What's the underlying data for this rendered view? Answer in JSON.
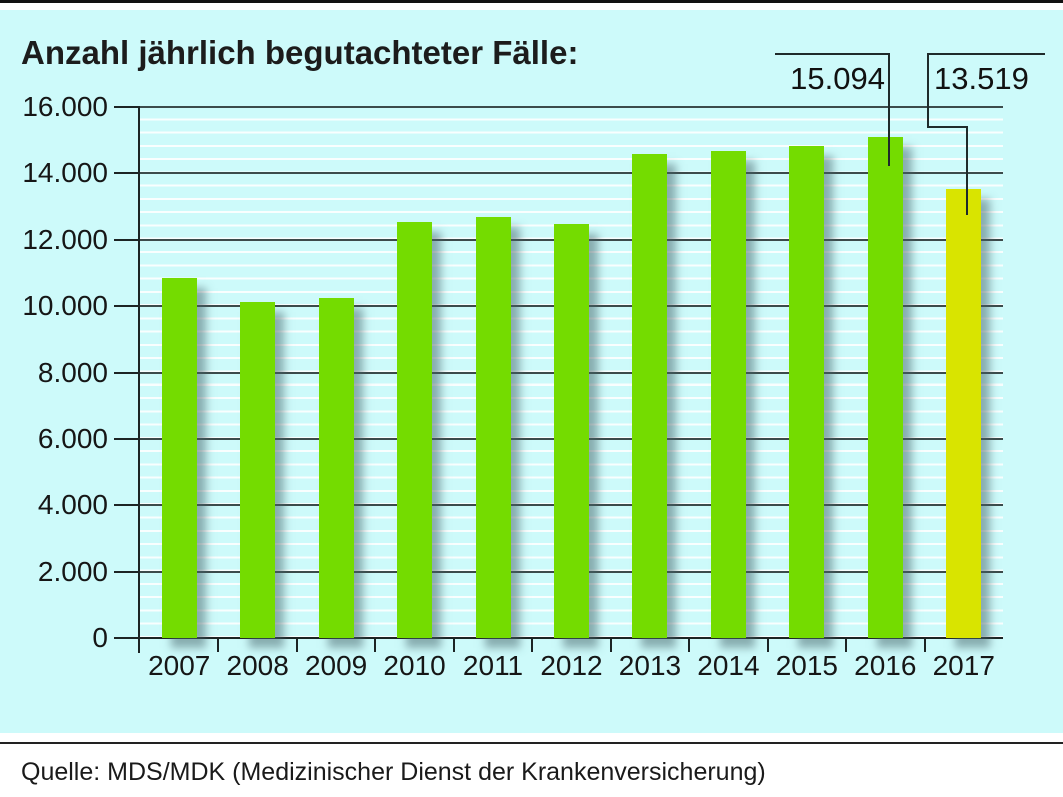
{
  "title": "Anzahl jährlich begutachteter Fälle:",
  "source": "Quelle: MDS/MDK (Medizinischer Dienst der Krankenversicherung)",
  "colors": {
    "panel_background": "#cdfafa",
    "bar_green": "#74dc00",
    "bar_highlight_yellow": "#d9e400",
    "major_gridline": "#3c4b4b",
    "axis": "#1c2424",
    "minor_gridline": "#ffffff",
    "text": "#1a1a1a"
  },
  "chart_data": {
    "type": "bar",
    "title": "Anzahl jährlich begutachteter Fälle:",
    "categories": [
      "2007",
      "2008",
      "2009",
      "2010",
      "2011",
      "2012",
      "2013",
      "2014",
      "2015",
      "2016",
      "2017"
    ],
    "values": [
      10850,
      10130,
      10230,
      12540,
      12686,
      12483,
      14585,
      14663,
      14828,
      15094,
      13519
    ],
    "ylim": [
      0,
      16000
    ],
    "ytick_labels": [
      "0",
      "2.000",
      "4.000",
      "6.000",
      "8.000",
      "10.000",
      "12.000",
      "14.000",
      "16.000"
    ],
    "xlabel": "",
    "ylabel": "",
    "grid": "major horizontal dark every 2000, minor white every 400",
    "legend": "none",
    "bar_color": "#74dc00",
    "highlight_bar_color": "#d9e400",
    "highlight_index": 10,
    "annotations": [
      {
        "category": "2016",
        "label": "15.094"
      },
      {
        "category": "2017",
        "label": "13.519"
      }
    ]
  }
}
